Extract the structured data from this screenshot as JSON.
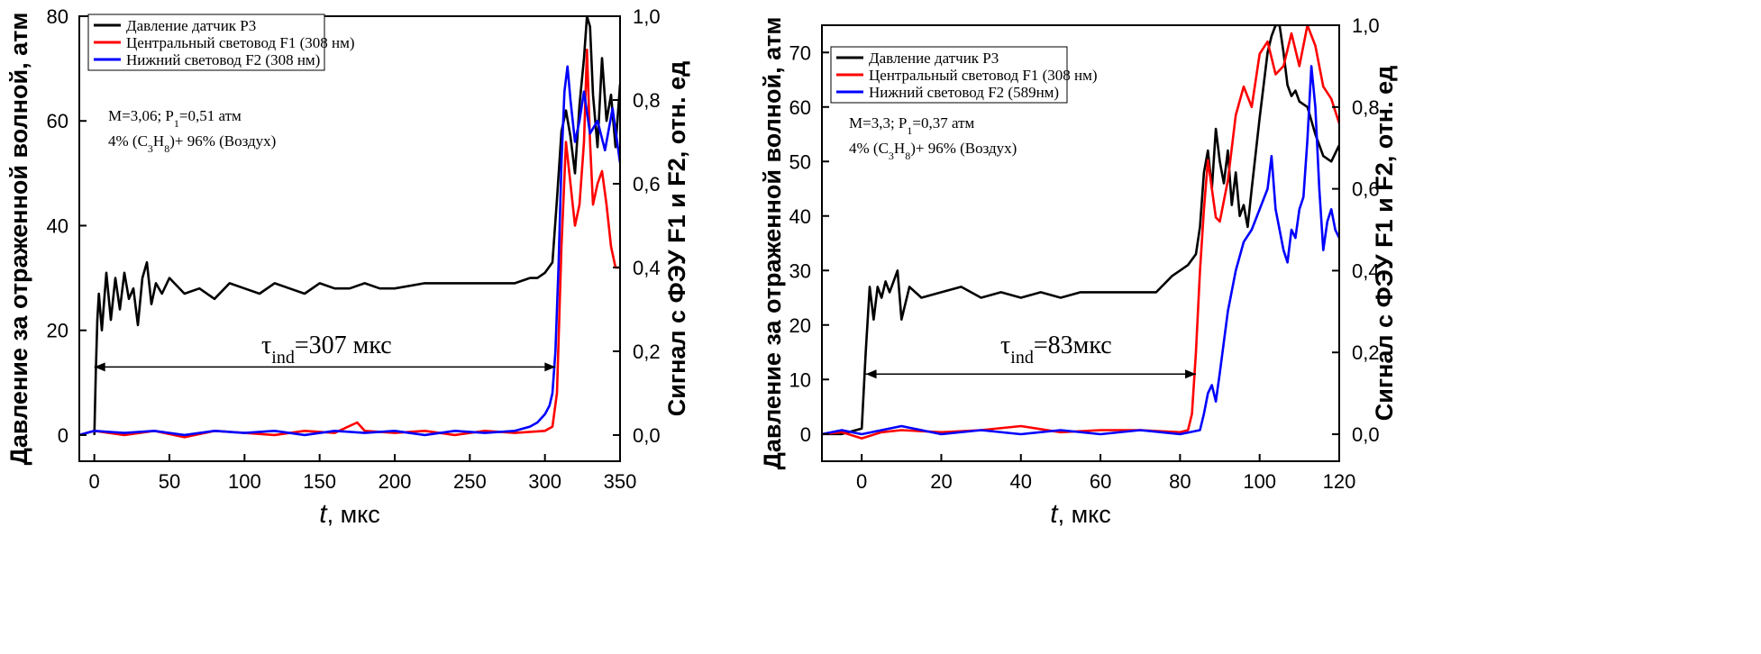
{
  "chart_data": [
    {
      "type": "line",
      "xlabel_t": "t",
      "xlabel_unit": ", мкс",
      "ylabel_left": "Давление за отраженной волной, атм",
      "ylabel_right": "Сигнал с ФЭУ F1 и F2, отн. ед",
      "xlim": [
        -10,
        350
      ],
      "ylim_left": [
        -5,
        80
      ],
      "ylim_right": [
        -0.0625,
        1.0
      ],
      "x_ticks": [
        "0",
        "50",
        "100",
        "150",
        "200",
        "250",
        "300",
        "350"
      ],
      "y_left_ticks": [
        "0",
        "20",
        "40",
        "60",
        "80"
      ],
      "y_right_ticks": [
        "0,0",
        "0,2",
        "0,4",
        "0,6",
        "0,8",
        "1,0"
      ],
      "legend": [
        "Давление датчик P3",
        "Центральный световод F1 (308 нм)",
        "Нижний световод F2 (308 нм)"
      ],
      "legend_position": "top-left",
      "colors": [
        "#000000",
        "#ff0000",
        "#0000ff"
      ],
      "annotation": {
        "line1": "M=3,06; P",
        "line1_sub": "1",
        "line1_rest": "=0,51 атм",
        "line2_a": "4% (C",
        "line2_sub1": "3",
        "line2_b": "H",
        "line2_sub2": "8",
        "line2_c": ")+ 96% (Воздух)"
      },
      "tau": {
        "symbol": "τ",
        "sub": "ind",
        "value": "=307 мкс",
        "from": 0,
        "to": 307,
        "y": 13
      },
      "series": [
        {
          "axis": "left",
          "x": [
            0,
            1,
            2,
            3,
            5,
            8,
            11,
            14,
            17,
            20,
            23,
            26,
            29,
            32,
            35,
            38,
            41,
            45,
            50,
            60,
            70,
            80,
            90,
            100,
            110,
            120,
            130,
            140,
            150,
            160,
            170,
            180,
            190,
            200,
            220,
            240,
            260,
            280,
            290,
            295,
            300,
            305,
            308,
            311,
            314,
            317,
            320,
            323,
            326,
            328,
            330,
            332,
            335,
            338,
            341,
            344,
            347,
            350
          ],
          "y": [
            0,
            12,
            22,
            27,
            20,
            31,
            22,
            30,
            24,
            31,
            26,
            28,
            21,
            30,
            33,
            25,
            29,
            27,
            30,
            27,
            28,
            26,
            29,
            28,
            27,
            29,
            28,
            27,
            29,
            28,
            28,
            29,
            28,
            28,
            29,
            29,
            29,
            29,
            30,
            30,
            31,
            33,
            45,
            58,
            62,
            57,
            50,
            63,
            72,
            80,
            78,
            65,
            55,
            72,
            60,
            65,
            55,
            67
          ]
        },
        {
          "axis": "right",
          "x": [
            -10,
            0,
            20,
            40,
            60,
            80,
            100,
            120,
            140,
            160,
            175,
            180,
            200,
            220,
            240,
            260,
            280,
            300,
            305,
            308,
            311,
            314,
            317,
            320,
            323,
            326,
            328,
            330,
            332,
            335,
            338,
            341,
            344,
            347,
            350
          ],
          "y": [
            0.0,
            0.01,
            0.0,
            0.01,
            -0.005,
            0.01,
            0.005,
            0.0,
            0.01,
            0.005,
            0.03,
            0.01,
            0.005,
            0.01,
            0.0,
            0.01,
            0.005,
            0.01,
            0.02,
            0.1,
            0.45,
            0.7,
            0.6,
            0.5,
            0.55,
            0.7,
            0.92,
            0.7,
            0.55,
            0.6,
            0.63,
            0.55,
            0.45,
            0.4,
            0.4
          ]
        },
        {
          "axis": "right",
          "x": [
            -10,
            0,
            20,
            40,
            60,
            80,
            100,
            120,
            140,
            160,
            180,
            200,
            220,
            240,
            260,
            280,
            290,
            295,
            300,
            303,
            305,
            307,
            309,
            311,
            313,
            315,
            317,
            320,
            323,
            326,
            330,
            335,
            340,
            345,
            350
          ],
          "y": [
            0.0,
            0.01,
            0.005,
            0.01,
            0.0,
            0.01,
            0.005,
            0.01,
            0.0,
            0.01,
            0.005,
            0.01,
            0.0,
            0.01,
            0.005,
            0.01,
            0.02,
            0.03,
            0.05,
            0.07,
            0.1,
            0.2,
            0.4,
            0.65,
            0.82,
            0.88,
            0.8,
            0.7,
            0.75,
            0.82,
            0.72,
            0.75,
            0.68,
            0.78,
            0.65
          ]
        }
      ]
    },
    {
      "type": "line",
      "xlabel_t": "t",
      "xlabel_unit": ", мкс",
      "ylabel_left": "Давление за отраженной волной, атм",
      "ylabel_right": "Сигнал с ФЭУ F1 и F2, отн. ед",
      "xlim": [
        -10,
        120
      ],
      "ylim_left": [
        -5,
        75
      ],
      "ylim_right": [
        -0.066,
        1.0
      ],
      "x_ticks": [
        "0",
        "20",
        "40",
        "60",
        "80",
        "100",
        "120"
      ],
      "y_left_ticks": [
        "0",
        "10",
        "20",
        "30",
        "40",
        "50",
        "60",
        "70"
      ],
      "y_right_ticks": [
        "0,0",
        "0,2",
        "0,4",
        "0,6",
        "0,8",
        "1,0"
      ],
      "legend": [
        "Давление датчик P3",
        "Центральный световод F1 (308 нм)",
        "Нижний световод F2 (589нм)"
      ],
      "legend_position": "top-left",
      "colors": [
        "#000000",
        "#ff0000",
        "#0000ff"
      ],
      "annotation": {
        "line1": "M=3,3; P",
        "line1_sub": "1",
        "line1_rest": "=0,37 атм",
        "line2_a": "4% (C",
        "line2_sub1": "3",
        "line2_b": "H",
        "line2_sub2": "8",
        "line2_c": ")+ 96% (Воздух)"
      },
      "tau": {
        "symbol": "τ",
        "sub": "ind",
        "value": "=83мкс",
        "from": 1,
        "to": 84,
        "y": 11
      },
      "series": [
        {
          "axis": "left",
          "x": [
            -10,
            -5,
            0,
            1,
            2,
            3,
            4,
            5,
            6,
            7,
            8,
            9,
            10,
            12,
            15,
            20,
            25,
            30,
            35,
            40,
            45,
            50,
            55,
            60,
            65,
            70,
            74,
            78,
            80,
            82,
            84,
            85,
            86,
            87,
            88,
            89,
            90,
            91,
            92,
            93,
            94,
            95,
            96,
            97,
            98,
            100,
            102,
            103,
            104,
            105,
            106,
            107,
            108,
            109,
            110,
            112,
            114,
            116,
            118,
            120
          ],
          "y": [
            0,
            0,
            1,
            15,
            27,
            21,
            27,
            25,
            28,
            26,
            28,
            30,
            21,
            27,
            25,
            26,
            27,
            25,
            26,
            25,
            26,
            25,
            26,
            26,
            26,
            26,
            26,
            29,
            30,
            31,
            33,
            38,
            48,
            52,
            45,
            56,
            50,
            46,
            52,
            42,
            48,
            40,
            42,
            38,
            45,
            58,
            70,
            73,
            75,
            75,
            70,
            64,
            62,
            63,
            61,
            60,
            55,
            51,
            50,
            53
          ]
        },
        {
          "axis": "right",
          "x": [
            -10,
            -5,
            0,
            5,
            10,
            20,
            30,
            40,
            50,
            60,
            70,
            80,
            82,
            83,
            84,
            85,
            86,
            87,
            88,
            89,
            90,
            92,
            94,
            96,
            98,
            100,
            102,
            104,
            106,
            108,
            110,
            112,
            114,
            116,
            118,
            120
          ],
          "y": [
            0.0,
            0.005,
            -0.01,
            0.005,
            0.01,
            0.005,
            0.01,
            0.02,
            0.005,
            0.01,
            0.01,
            0.005,
            0.01,
            0.05,
            0.2,
            0.4,
            0.55,
            0.67,
            0.6,
            0.53,
            0.52,
            0.62,
            0.78,
            0.85,
            0.8,
            0.93,
            0.96,
            0.88,
            0.9,
            0.98,
            0.9,
            1.0,
            0.95,
            0.85,
            0.82,
            0.76
          ]
        },
        {
          "axis": "right",
          "x": [
            -10,
            -5,
            0,
            5,
            10,
            20,
            30,
            40,
            50,
            60,
            70,
            80,
            85,
            86,
            87,
            88,
            89,
            90,
            92,
            94,
            96,
            98,
            100,
            102,
            103,
            104,
            105,
            106,
            107,
            108,
            109,
            110,
            111,
            112,
            113,
            114,
            115,
            116,
            117,
            118,
            119,
            120
          ],
          "y": [
            0.0,
            0.01,
            0.0,
            0.01,
            0.02,
            0.0,
            0.01,
            0.0,
            0.01,
            0.0,
            0.01,
            0.0,
            0.01,
            0.05,
            0.1,
            0.12,
            0.08,
            0.15,
            0.3,
            0.4,
            0.47,
            0.5,
            0.55,
            0.6,
            0.68,
            0.55,
            0.5,
            0.45,
            0.42,
            0.5,
            0.48,
            0.55,
            0.58,
            0.72,
            0.9,
            0.8,
            0.6,
            0.45,
            0.52,
            0.55,
            0.5,
            0.48
          ]
        }
      ]
    }
  ]
}
